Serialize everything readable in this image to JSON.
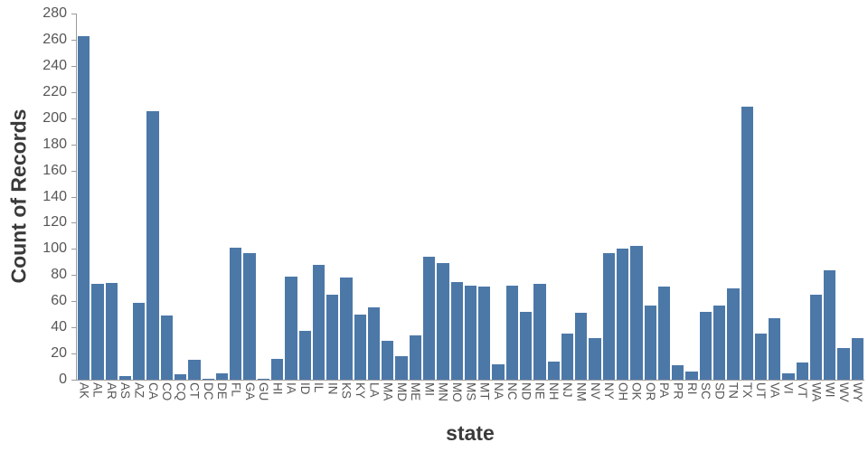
{
  "chart_data": {
    "type": "bar",
    "title": "",
    "xlabel": "state",
    "ylabel": "Count of Records",
    "ylim": [
      0,
      280
    ],
    "yticks": [
      0,
      20,
      40,
      60,
      80,
      100,
      120,
      140,
      160,
      180,
      200,
      220,
      240,
      260,
      280
    ],
    "grid": false,
    "legend": "none",
    "bar_color": "#4c78a8",
    "axis_color": "#9b9b9b",
    "label_color": "#565656",
    "title_color": "#3a3a3a",
    "categories": [
      "AK",
      "AL",
      "AR",
      "AS",
      "AZ",
      "CA",
      "CO",
      "CQ",
      "CT",
      "DC",
      "DE",
      "FL",
      "GA",
      "GU",
      "HI",
      "IA",
      "ID",
      "IL",
      "IN",
      "KS",
      "KY",
      "LA",
      "MA",
      "MD",
      "ME",
      "MI",
      "MN",
      "MO",
      "MS",
      "MT",
      "NA",
      "NC",
      "ND",
      "NE",
      "NH",
      "NJ",
      "NM",
      "NV",
      "NY",
      "OH",
      "OK",
      "OR",
      "PA",
      "PR",
      "RI",
      "SC",
      "SD",
      "TN",
      "TX",
      "UT",
      "VA",
      "VI",
      "VT",
      "WA",
      "WI",
      "WV",
      "WY"
    ],
    "values": [
      263,
      73,
      74,
      3,
      59,
      205,
      49,
      4,
      15,
      1,
      5,
      101,
      97,
      1,
      16,
      79,
      37,
      88,
      65,
      78,
      50,
      55,
      30,
      18,
      34,
      94,
      89,
      75,
      72,
      71,
      12,
      72,
      52,
      73,
      14,
      35,
      51,
      32,
      97,
      100,
      102,
      57,
      71,
      11,
      6,
      52,
      57,
      70,
      209,
      35,
      47,
      5,
      13,
      65,
      84,
      24,
      32
    ]
  }
}
